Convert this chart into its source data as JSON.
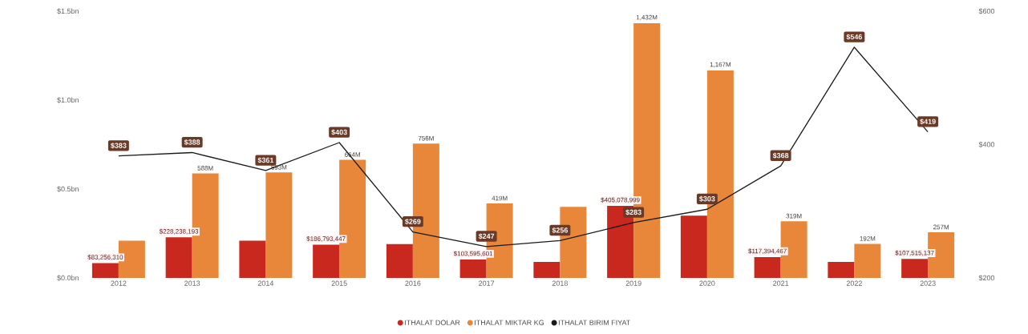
{
  "chart_data": {
    "type": "bar",
    "categories": [
      "2012",
      "2013",
      "2014",
      "2015",
      "2016",
      "2017",
      "2018",
      "2019",
      "2020",
      "2021",
      "2022",
      "2023"
    ],
    "ylim": [
      0,
      1500000000
    ],
    "yticks": [
      {
        "value": 0,
        "label": "$0.0bn"
      },
      {
        "value": 500000000,
        "label": "$0.5bn"
      },
      {
        "value": 1000000000,
        "label": "$1.0bn"
      },
      {
        "value": 1500000000,
        "label": "$1.5bn"
      }
    ],
    "y2lim": [
      200,
      600
    ],
    "y2ticks": [
      {
        "value": 200,
        "label": "$200"
      },
      {
        "value": 400,
        "label": "$400"
      },
      {
        "value": 600,
        "label": "$600"
      }
    ],
    "legend": "bottom",
    "series": [
      {
        "name": "ITHALAT DOLAR",
        "color": "#c8281e",
        "values": [
          83256310,
          228238193,
          210000000,
          186793447,
          190000000,
          103595601,
          90000000,
          405078999,
          350000000,
          117394467,
          90000000,
          107515137
        ],
        "value_labels": [
          "$83,256,310",
          "$228,238,193",
          null,
          "$186,793,447",
          null,
          "$103,595,601",
          null,
          "$405,078,999",
          null,
          "$117,394,467",
          null,
          "$107,515,137"
        ]
      },
      {
        "name": "ITHALAT MIKTAR KG",
        "color": "#e8873a",
        "values": [
          210000000,
          588000000,
          593000000,
          664000000,
          756000000,
          419000000,
          400000000,
          1432000000,
          1167000000,
          319000000,
          192000000,
          257000000
        ],
        "value_labels": [
          null,
          "588M",
          "593M",
          "664M",
          "756M",
          "419M",
          null,
          "1,432M",
          "1,167M",
          "319M",
          "192M",
          "257M"
        ]
      },
      {
        "name": "ITHALAT BIRIM FIYAT",
        "type": "line",
        "axis": "y2",
        "color": "#1a1a1a",
        "values": [
          383,
          388,
          361,
          403,
          269,
          247,
          256,
          283,
          303,
          368,
          546,
          419
        ],
        "value_labels": [
          "$383",
          "$388",
          "$361",
          "$403",
          "$269",
          "$247",
          "$256",
          "$283",
          "$303",
          "$368",
          "$546",
          "$419"
        ]
      }
    ]
  }
}
